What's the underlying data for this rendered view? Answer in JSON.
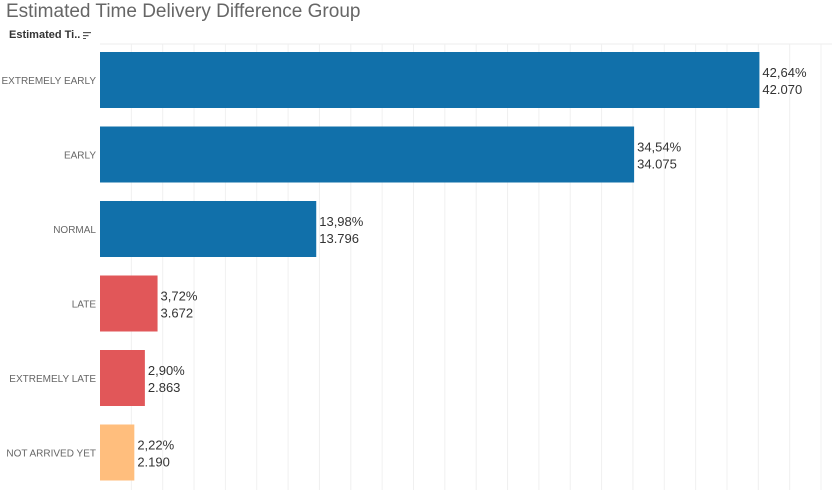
{
  "title": "Estimated Time Delivery Difference Group",
  "header": {
    "field_label": "Estimated Ti..",
    "sort_icon": "sort-descending-icon"
  },
  "chart_data": {
    "type": "bar",
    "orientation": "horizontal",
    "title": "Estimated Time Delivery Difference Group",
    "categories": [
      "EXTREMELY EARLY",
      "EARLY",
      "NORMAL",
      "LATE",
      "EXTREMELY LATE",
      "NOT ARRIVED YET"
    ],
    "values": [
      42070,
      34075,
      13796,
      3672,
      2863,
      2190
    ],
    "percent_labels": [
      "42,64%",
      "34,54%",
      "13,98%",
      "3,72%",
      "2,90%",
      "2,22%"
    ],
    "value_labels": [
      "42.070",
      "34.075",
      "13.796",
      "3.672",
      "2.863",
      "2.190"
    ],
    "colors": [
      "#1170aa",
      "#1170aa",
      "#1170aa",
      "#e15759",
      "#e15759",
      "#ffbe7d"
    ],
    "xlim": [
      0,
      46700
    ],
    "grid_step": 2000,
    "grid": true
  }
}
